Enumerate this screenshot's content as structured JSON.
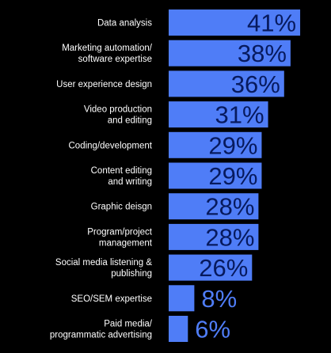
{
  "chart_data": {
    "type": "bar",
    "orientation": "horizontal",
    "categories": [
      "Data analysis",
      "Marketing automation/\nsoftware expertise",
      "User experience design",
      "Video production\nand editing",
      "Coding/development",
      "Content editing\nand writing",
      "Graphic deisgn",
      "Program/project\nmanagement",
      "Social media listening &\npublishing",
      "SEO/SEM expertise",
      "Paid media/\nprogrammatic advertising"
    ],
    "values": [
      41,
      38,
      36,
      31,
      29,
      29,
      28,
      28,
      26,
      8,
      6
    ],
    "value_labels": [
      "41%",
      "38%",
      "36%",
      "31%",
      "29%",
      "29%",
      "28%",
      "28%",
      "26%",
      "8%",
      "6%"
    ],
    "title": "",
    "xlabel": "",
    "ylabel": "",
    "grid": false,
    "legend": "none"
  },
  "colors": {
    "background": "#000000",
    "bar": "#4f7df7",
    "value_on_bar": "#071a5e",
    "value_off_bar": "#4f7df7",
    "category_text": "#ffffff"
  }
}
